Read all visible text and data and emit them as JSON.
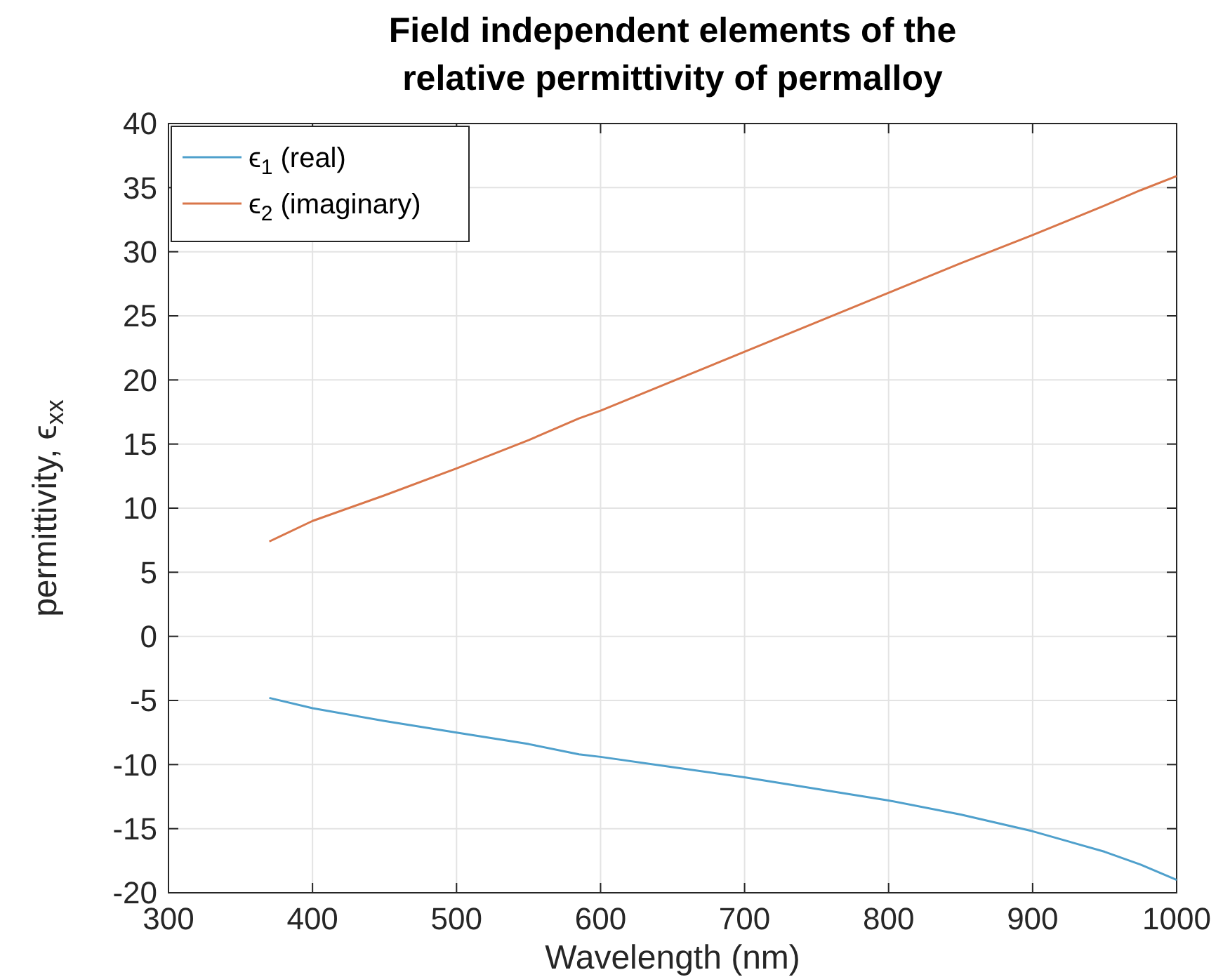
{
  "chart_data": {
    "type": "line",
    "title": "Field independent elements of the relative permittivity of permalloy",
    "xlabel": "Wavelength (nm)",
    "ylabel": "permittivity, ϵ$_{xx}$",
    "x": [
      370,
      400,
      450,
      500,
      550,
      585,
      600,
      650,
      700,
      750,
      800,
      850,
      900,
      950,
      975,
      1000
    ],
    "series": [
      {
        "name": "ϵ$_{1}$ (real)",
        "color": "#4fa0cc",
        "values": [
          -4.8,
          -5.6,
          -6.6,
          -7.5,
          -8.4,
          -9.2,
          -9.4,
          -10.2,
          -11.0,
          -11.9,
          -12.8,
          -13.9,
          -15.2,
          -16.8,
          -17.8,
          -19.0
        ]
      },
      {
        "name": "ϵ$_{2}$ (imaginary)",
        "color": "#d9764a",
        "values": [
          7.4,
          9.0,
          11.0,
          13.1,
          15.3,
          17.0,
          17.6,
          19.9,
          22.2,
          24.5,
          26.8,
          29.1,
          31.3,
          33.6,
          34.8,
          35.9
        ]
      }
    ],
    "xlim": [
      300,
      1000
    ],
    "xticks": [
      300,
      400,
      500,
      600,
      700,
      800,
      900,
      1000
    ],
    "ylim": [
      -20,
      40
    ],
    "yticks": [
      -20,
      -15,
      -10,
      -5,
      0,
      5,
      10,
      15,
      20,
      25,
      30,
      35,
      40
    ],
    "grid": true,
    "legend": "top left",
    "line_style": "solid",
    "marker": "none"
  }
}
